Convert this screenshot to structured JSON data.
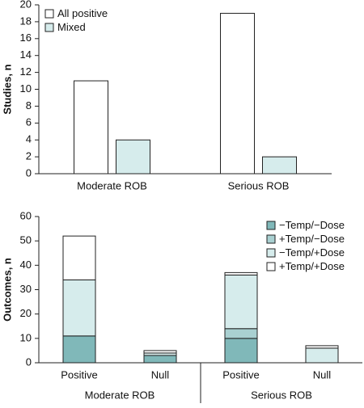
{
  "chart_data": [
    {
      "type": "bar",
      "y_label": "Studies, n",
      "categories": [
        "Moderate ROB",
        "Serious ROB"
      ],
      "series": [
        {
          "name": "All positive",
          "color": "#ffffff",
          "values": [
            11,
            19
          ]
        },
        {
          "name": "Mixed",
          "color": "#d6ecec",
          "values": [
            4,
            2
          ]
        }
      ],
      "ylim": [
        0,
        20
      ],
      "yticks": [
        0,
        2,
        4,
        6,
        8,
        10,
        12,
        14,
        16,
        18,
        20
      ],
      "legend": "top-left"
    },
    {
      "type": "stacked_bar",
      "y_label": "Outcomes, n",
      "categories": [
        "Positive",
        "Null",
        "Positive",
        "Null"
      ],
      "groups": [
        "Moderate ROB",
        "Serious ROB"
      ],
      "series": [
        {
          "name": "−Temp/−Dose",
          "color": "#80b8b9",
          "values": [
            11,
            3,
            10,
            0
          ]
        },
        {
          "name": "+Temp/−Dose",
          "color": "#a9d0d1",
          "values": [
            0,
            0,
            4,
            0
          ]
        },
        {
          "name": "−Temp/+Dose",
          "color": "#d6ecec",
          "values": [
            23,
            1,
            22,
            6
          ]
        },
        {
          "name": "+Temp/+Dose",
          "color": "#ffffff",
          "values": [
            18,
            1,
            1,
            1
          ]
        }
      ],
      "ylim": [
        0,
        60
      ],
      "yticks": [
        0,
        10,
        20,
        30,
        40,
        50,
        60
      ],
      "legend": "top-right"
    }
  ]
}
